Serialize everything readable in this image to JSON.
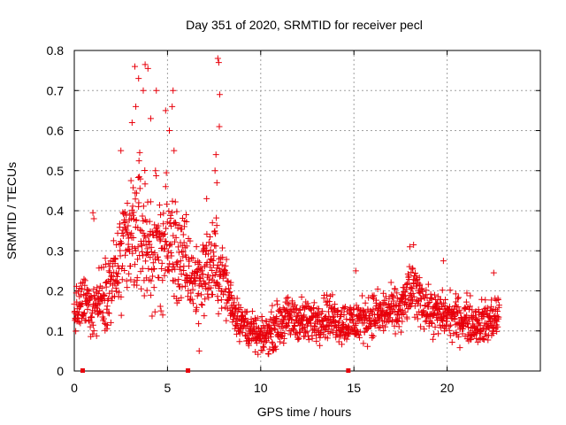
{
  "chart_data": {
    "type": "scatter",
    "title": "Day 351 of 2020, SRMTID for receiver pecl",
    "xlabel": "GPS time / hours",
    "ylabel": "SRMTID / TECUs",
    "xlim": [
      0,
      25
    ],
    "ylim": [
      0,
      0.8
    ],
    "x_ticks": [
      0,
      5,
      10,
      15,
      20
    ],
    "x_tick_labels": [
      "0",
      "5",
      "10",
      "15",
      "20"
    ],
    "y_ticks": [
      0,
      0.1,
      0.2,
      0.3,
      0.4,
      0.5,
      0.6,
      0.7,
      0.8
    ],
    "y_tick_labels": [
      "0",
      "0.1",
      "0.2",
      "0.3",
      "0.4",
      "0.5",
      "0.6",
      "0.7",
      "0.8"
    ],
    "grid": true,
    "marker": "plus",
    "color": "#e8000b",
    "gap_markers_x": [
      0.45,
      6.1,
      14.7
    ],
    "envelope": {
      "x": [
        0,
        0.5,
        1.0,
        1.5,
        2.0,
        2.5,
        3.0,
        3.5,
        4.0,
        4.5,
        5.0,
        5.5,
        6.0,
        6.5,
        7.0,
        7.5,
        8.0,
        8.5,
        9.0,
        9.5,
        10.0,
        10.5,
        11.0,
        11.5,
        12.0,
        12.5,
        13.0,
        13.5,
        14.0,
        14.5,
        15.0,
        15.5,
        16.0,
        16.5,
        17.0,
        17.5,
        18.0,
        18.5,
        19.0,
        19.5,
        20.0,
        20.5,
        21.0,
        21.5,
        22.0,
        22.5,
        22.8
      ],
      "center": [
        0.14,
        0.17,
        0.16,
        0.19,
        0.22,
        0.27,
        0.32,
        0.36,
        0.31,
        0.3,
        0.33,
        0.29,
        0.26,
        0.22,
        0.25,
        0.27,
        0.23,
        0.16,
        0.12,
        0.1,
        0.08,
        0.1,
        0.12,
        0.13,
        0.13,
        0.12,
        0.13,
        0.14,
        0.13,
        0.12,
        0.12,
        0.13,
        0.14,
        0.14,
        0.15,
        0.15,
        0.2,
        0.19,
        0.15,
        0.14,
        0.14,
        0.13,
        0.13,
        0.12,
        0.12,
        0.13,
        0.14
      ],
      "spread": [
        0.05,
        0.06,
        0.07,
        0.07,
        0.09,
        0.12,
        0.15,
        0.16,
        0.16,
        0.14,
        0.14,
        0.12,
        0.1,
        0.09,
        0.09,
        0.1,
        0.08,
        0.05,
        0.045,
        0.04,
        0.035,
        0.045,
        0.05,
        0.05,
        0.05,
        0.05,
        0.05,
        0.05,
        0.05,
        0.05,
        0.05,
        0.05,
        0.05,
        0.05,
        0.05,
        0.05,
        0.06,
        0.06,
        0.05,
        0.05,
        0.05,
        0.05,
        0.05,
        0.05,
        0.05,
        0.05,
        0.05
      ],
      "sample_step_hours": 0.013
    },
    "peaks": [
      {
        "x": 3.25,
        "y": 0.76
      },
      {
        "x": 3.45,
        "y": 0.73
      },
      {
        "x": 3.8,
        "y": 0.765
      },
      {
        "x": 3.95,
        "y": 0.755
      },
      {
        "x": 3.3,
        "y": 0.66
      },
      {
        "x": 3.7,
        "y": 0.7
      },
      {
        "x": 3.1,
        "y": 0.62
      },
      {
        "x": 4.4,
        "y": 0.7
      },
      {
        "x": 4.1,
        "y": 0.63
      },
      {
        "x": 4.9,
        "y": 0.65
      },
      {
        "x": 5.3,
        "y": 0.7
      },
      {
        "x": 5.25,
        "y": 0.66
      },
      {
        "x": 5.35,
        "y": 0.55
      },
      {
        "x": 5.1,
        "y": 0.6
      },
      {
        "x": 2.5,
        "y": 0.55
      },
      {
        "x": 7.7,
        "y": 0.78
      },
      {
        "x": 7.75,
        "y": 0.77
      },
      {
        "x": 7.8,
        "y": 0.69
      },
      {
        "x": 7.78,
        "y": 0.61
      },
      {
        "x": 7.6,
        "y": 0.54
      },
      {
        "x": 7.55,
        "y": 0.5
      },
      {
        "x": 7.65,
        "y": 0.47
      },
      {
        "x": 7.1,
        "y": 0.43
      },
      {
        "x": 6.0,
        "y": 0.39
      },
      {
        "x": 1.0,
        "y": 0.395
      },
      {
        "x": 1.05,
        "y": 0.38
      },
      {
        "x": 6.7,
        "y": 0.05
      },
      {
        "x": 18.2,
        "y": 0.315
      },
      {
        "x": 18.0,
        "y": 0.31
      },
      {
        "x": 19.8,
        "y": 0.275
      },
      {
        "x": 15.1,
        "y": 0.25
      },
      {
        "x": 22.5,
        "y": 0.245
      }
    ]
  }
}
